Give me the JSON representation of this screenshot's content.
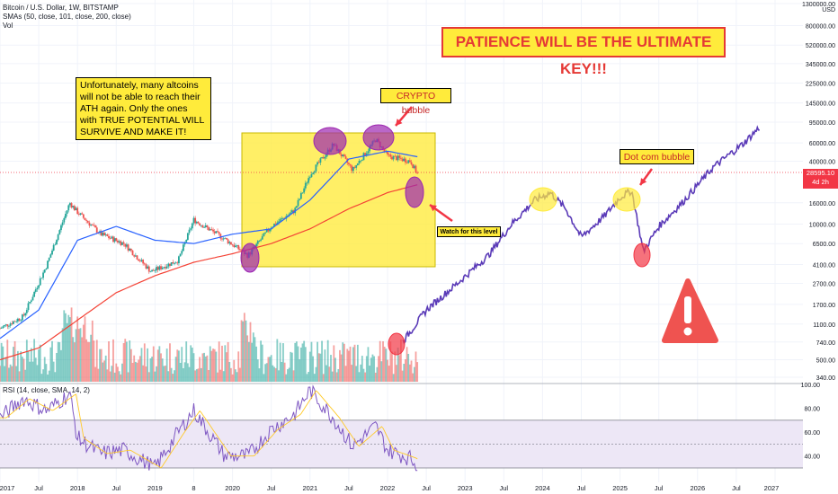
{
  "header": {
    "symbol_line": "Bitcoin / U.S. Dollar, 1W, BITSTAMP",
    "sma_line": "SMAs (50, close, 101, close, 200, close)",
    "vol_line": "Vol",
    "rsi_line": "RSI (14, close, SMA, 14, 2)"
  },
  "annotations": {
    "left_note": "Unfortunately, many altcoins will not be able to reach their ATH again. Only the ones with TRUE POTENTIAL WILL SURVIVE AND MAKE IT!",
    "top_note": "PATIENCE WILL BE THE ULTIMATE KEY!!!",
    "crypto_bubble": "CRYPTO bubble",
    "dotcom_bubble": "Dot com bubble",
    "watch_level": "Watch for this level"
  },
  "price_tag": {
    "price": "28595.10",
    "countdown": "4d 2h"
  },
  "colors": {
    "candle_up": "#26a69a",
    "candle_down": "#ef5350",
    "sma_blue": "#2962ff",
    "sma_red": "#f44336",
    "projection": "#5b3bb8",
    "highlight_box": "#ffeb3b",
    "bubble_purple": "#9c27b0",
    "rsi_line": "#7e57c2",
    "rsi_band": "#ede7f6"
  },
  "chart_data": [
    {
      "type": "line",
      "title": "Bitcoin / U.S. Dollar, 1W, BITSTAMP",
      "scale": "log",
      "y_ticks": [
        "1300000.00",
        "800000.00",
        "520000.00",
        "345000.00",
        "225000.00",
        "145000.00",
        "95000.00",
        "60000.00",
        "40000.00",
        "16000.00",
        "10000.00",
        "6500.00",
        "4100.00",
        "2700.00",
        "1700.00",
        "1100.00",
        "740.00",
        "500.00",
        "340.00"
      ],
      "y_unit": "USD",
      "x_ticks": [
        "2017",
        "Jul",
        "2018",
        "Jul",
        "2019",
        "8",
        "2020",
        "Jul",
        "2021",
        "Jul",
        "2022",
        "Jul",
        "2023",
        "Jul",
        "2024",
        "Jul",
        "2025",
        "Jul",
        "2026",
        "Jul",
        "2027"
      ],
      "series": [
        {
          "role": "price",
          "x": [
            2017.0,
            2017.3,
            2017.6,
            2017.9,
            2018.0,
            2018.3,
            2018.6,
            2018.95,
            2019.3,
            2019.5,
            2019.9,
            2020.2,
            2020.5,
            2020.8,
            2021.0,
            2021.3,
            2021.55,
            2021.85,
            2022.0,
            2022.3,
            2022.4
          ],
          "y": [
            1000,
            1300,
            4000,
            16000,
            13000,
            8000,
            6500,
            3500,
            4500,
            11000,
            7200,
            5000,
            9500,
            13500,
            30000,
            58000,
            33000,
            65000,
            45000,
            40000,
            28595
          ]
        },
        {
          "role": "SMA 50",
          "x": [
            2017.0,
            2017.5,
            2018.0,
            2018.5,
            2019.0,
            2019.5,
            2020.0,
            2020.5,
            2021.0,
            2021.5,
            2022.0,
            2022.4
          ],
          "y": [
            800,
            1500,
            7000,
            9500,
            7000,
            6500,
            8000,
            9000,
            17000,
            42000,
            50000,
            44000
          ]
        },
        {
          "role": "SMA 200",
          "x": [
            2017.0,
            2017.5,
            2018.0,
            2018.5,
            2019.0,
            2019.5,
            2020.0,
            2020.5,
            2021.0,
            2021.5,
            2022.0,
            2022.4
          ],
          "y": [
            500,
            650,
            1200,
            2200,
            3200,
            4300,
            5200,
            6500,
            9000,
            14000,
            20000,
            24000
          ]
        },
        {
          "role": "projection",
          "x": [
            2022.2,
            2022.5,
            2022.9,
            2023.3,
            2023.6,
            2023.9,
            2024.1,
            2024.3,
            2024.5,
            2024.8,
            2025.0,
            2025.15,
            2025.3,
            2025.5,
            2025.8,
            2026.2,
            2026.6,
            2026.8
          ],
          "y": [
            750,
            1500,
            2700,
            5000,
            10000,
            17000,
            20000,
            14000,
            7500,
            12000,
            18000,
            21000,
            5500,
            9500,
            16000,
            35000,
            60000,
            85000
          ]
        }
      ]
    },
    {
      "type": "line",
      "title": "RSI (14, close, SMA, 14, 2)",
      "y_ticks": [
        "100.00",
        "80.00",
        "60.00",
        "40.00"
      ],
      "bands": [
        30,
        70
      ],
      "x": [
        2017.0,
        2017.3,
        2017.6,
        2017.9,
        2018.0,
        2018.3,
        2018.6,
        2019.0,
        2019.3,
        2019.5,
        2019.9,
        2020.2,
        2020.5,
        2020.8,
        2021.0,
        2021.3,
        2021.55,
        2021.85,
        2022.0,
        2022.3,
        2022.4
      ],
      "values": [
        72,
        88,
        78,
        92,
        55,
        42,
        45,
        30,
        60,
        78,
        40,
        40,
        62,
        75,
        95,
        72,
        48,
        65,
        45,
        38,
        30
      ]
    }
  ]
}
